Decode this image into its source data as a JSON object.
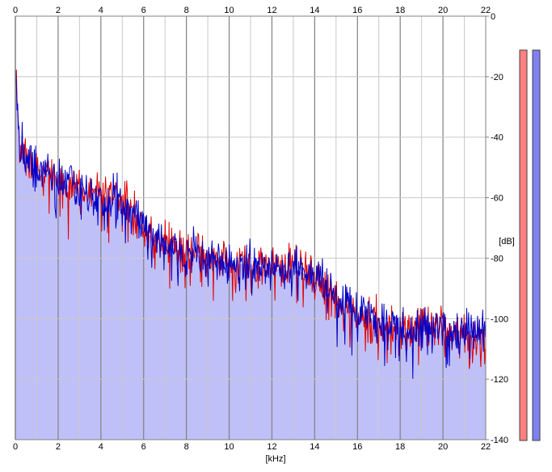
{
  "chart_data": {
    "type": "area",
    "title": "",
    "xlabel": "[kHz]",
    "ylabel": "[dB]",
    "xlim": [
      0,
      22
    ],
    "ylim": [
      -140,
      0
    ],
    "x_ticks": [
      0,
      2,
      4,
      6,
      8,
      10,
      12,
      14,
      16,
      18,
      20,
      22
    ],
    "y_ticks": [
      0,
      -20,
      -40,
      -60,
      -80,
      -100,
      -120,
      -140
    ],
    "grid": true,
    "x_tick_positions": "top and bottom",
    "y_tick_position": "right",
    "colors": {
      "area_fill": "#c0c0f8",
      "series_red": "#e00000",
      "series_blue": "#0000c8",
      "grid_major": "#808080",
      "grid_minor": "#c8c8c8",
      "meter_left_fill": "#ff8080",
      "meter_right_fill": "#8080f0"
    },
    "envelope": {
      "x": [
        0,
        0.05,
        0.1,
        0.2,
        0.4,
        0.7,
        1,
        1.5,
        2,
        2.5,
        3,
        3.5,
        4,
        4.5,
        5,
        5.5,
        6,
        6.5,
        7,
        7.5,
        8,
        8.5,
        9,
        9.5,
        10,
        10.5,
        11,
        11.5,
        12,
        12.5,
        13,
        13.5,
        14,
        14.5,
        15,
        15.5,
        16,
        16.5,
        17,
        17.5,
        18,
        18.5,
        19,
        19.5,
        20,
        20.5,
        21,
        21.5,
        22
      ],
      "y": [
        -16,
        -22,
        -30,
        -42,
        -47,
        -48,
        -50,
        -52,
        -54,
        -56,
        -57,
        -58,
        -59,
        -60,
        -61,
        -64,
        -70,
        -74,
        -76,
        -77,
        -78,
        -79,
        -80,
        -81,
        -82,
        -82,
        -82,
        -83,
        -83,
        -84,
        -84,
        -85,
        -86,
        -89,
        -94,
        -97,
        -99,
        -100,
        -101,
        -102,
        -103,
        -103,
        -103,
        -103,
        -104,
        -104,
        -104,
        -104,
        -103
      ]
    },
    "series": [
      {
        "name": "",
        "color": "#e00000",
        "x_step": 0.03,
        "y_base": "envelope",
        "y_jitter_db": 6
      },
      {
        "name": "",
        "color": "#0000c8",
        "x_step": 0.03,
        "y_base": "envelope",
        "y_jitter_db": 6
      }
    ],
    "level_meters": [
      {
        "name": "",
        "color": "#ff8080",
        "level_fraction": 0.9
      },
      {
        "name": "",
        "color": "#8080f0",
        "level_fraction": 0.9
      }
    ]
  }
}
